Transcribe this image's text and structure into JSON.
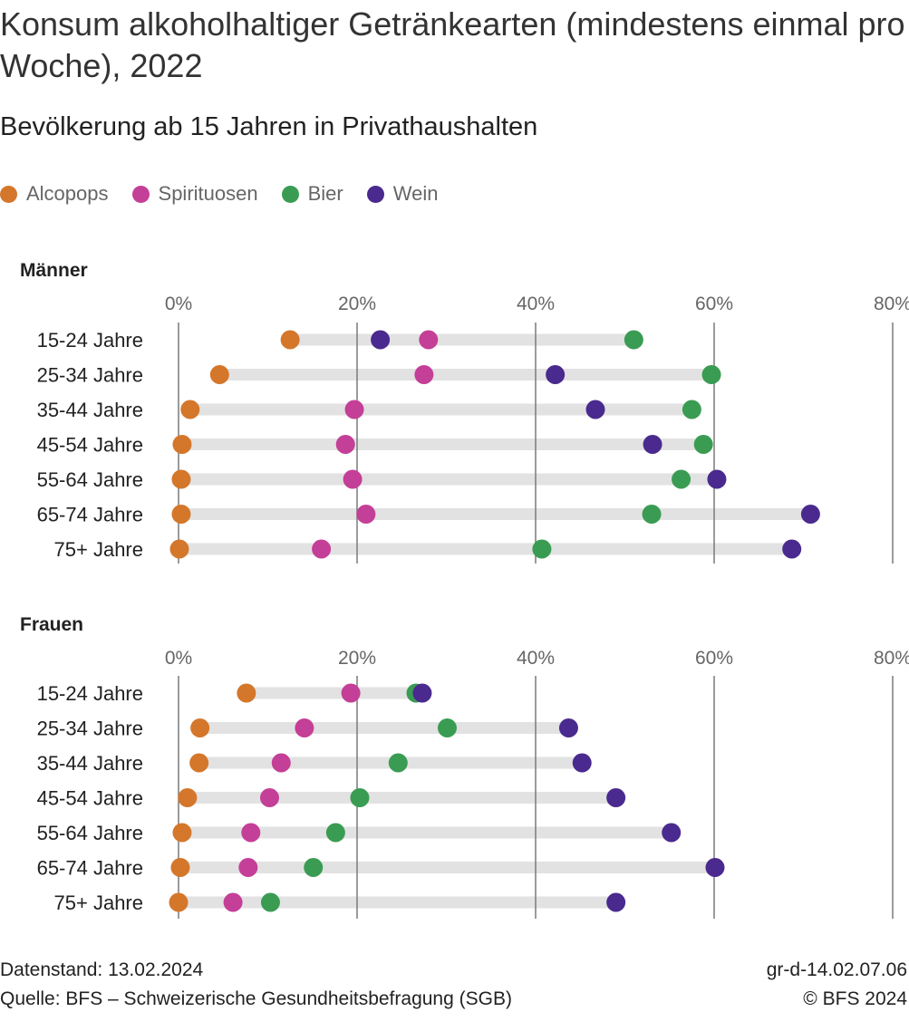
{
  "title": "Konsum alkoholhaltiger Getränkearten (mindestens einmal pro Woche), 2022",
  "subtitle": "Bevölkerung ab 15 Jahren in Privathaushalten",
  "legend": [
    {
      "label": "Alcopops",
      "color": "#d4772b"
    },
    {
      "label": "Spirituosen",
      "color": "#c43f97"
    },
    {
      "label": "Bier",
      "color": "#3a9c53"
    },
    {
      "label": "Wein",
      "color": "#4a2a8e"
    }
  ],
  "footer": {
    "datenstand": "Datenstand: 13.02.2024",
    "quelle": "Quelle: BFS – Schweizerische Gesundheitsbefragung (SGB)",
    "code": "gr-d-14.02.07.06",
    "copyright": "© BFS 2024"
  },
  "chart_data": [
    {
      "type": "scatter",
      "title": "Männer",
      "xlim": [
        0,
        80
      ],
      "xticks": [
        "0%",
        "20%",
        "40%",
        "60%",
        "80%"
      ],
      "xtick_values": [
        0,
        20,
        40,
        60,
        80
      ],
      "categories": [
        "15-24 Jahre",
        "25-34 Jahre",
        "35-44 Jahre",
        "45-54 Jahre",
        "55-64 Jahre",
        "65-74 Jahre",
        "75+ Jahre"
      ],
      "series": [
        {
          "name": "Alcopops",
          "values": [
            12.5,
            4.6,
            1.3,
            0.4,
            0.3,
            0.3,
            0.1
          ]
        },
        {
          "name": "Spirituosen",
          "values": [
            28.0,
            27.5,
            19.7,
            18.7,
            19.5,
            21.0,
            16.0
          ]
        },
        {
          "name": "Bier",
          "values": [
            51.0,
            59.7,
            57.5,
            58.8,
            56.3,
            53.0,
            40.7
          ]
        },
        {
          "name": "Wein",
          "values": [
            22.6,
            42.2,
            46.7,
            53.1,
            60.3,
            70.8,
            68.7
          ]
        }
      ]
    },
    {
      "type": "scatter",
      "title": "Frauen",
      "xlim": [
        0,
        80
      ],
      "xticks": [
        "0%",
        "20%",
        "40%",
        "60%",
        "80%"
      ],
      "xtick_values": [
        0,
        20,
        40,
        60,
        80
      ],
      "categories": [
        "15-24 Jahre",
        "25-34 Jahre",
        "35-44 Jahre",
        "45-54 Jahre",
        "55-64 Jahre",
        "65-74 Jahre",
        "75+ Jahre"
      ],
      "series": [
        {
          "name": "Alcopops",
          "values": [
            7.6,
            2.4,
            2.3,
            1.0,
            0.4,
            0.2,
            0.0
          ]
        },
        {
          "name": "Spirituosen",
          "values": [
            19.3,
            14.1,
            11.5,
            10.2,
            8.1,
            7.8,
            6.1
          ]
        },
        {
          "name": "Bier",
          "values": [
            26.6,
            30.1,
            24.6,
            20.3,
            17.6,
            15.1,
            10.3
          ]
        },
        {
          "name": "Wein",
          "values": [
            27.3,
            43.7,
            45.2,
            49.0,
            55.2,
            60.1,
            49.0
          ]
        }
      ]
    }
  ]
}
